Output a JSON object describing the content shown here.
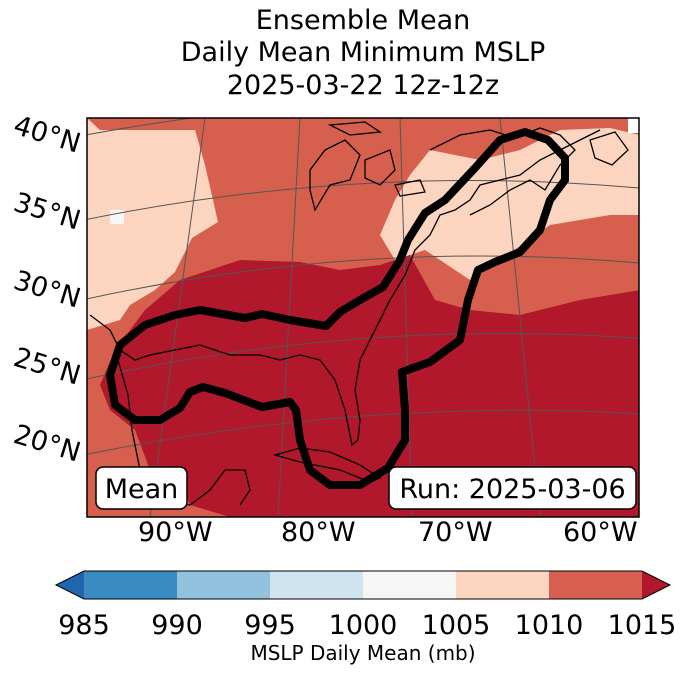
{
  "title": {
    "line1": "Ensemble Mean",
    "line2": "Daily Mean Minimum MSLP",
    "line3": "2025-03-22 12z-12z"
  },
  "map": {
    "lat_labels": [
      "40°N",
      "35°N",
      "30°N",
      "25°N",
      "20°N"
    ],
    "lon_labels": [
      "90°W",
      "80°W",
      "70°W",
      "60°W"
    ],
    "mean_box": "Mean",
    "run_box": "Run: 2025-03-06"
  },
  "colorbar": {
    "ticks": [
      "985",
      "990",
      "995",
      "1000",
      "1005",
      "1010",
      "1015"
    ],
    "colors": [
      "#3a8bc1",
      "#91c2de",
      "#d0e4ef",
      "#f6f6f6",
      "#fcd5c0",
      "#d6604d",
      "#b2182b"
    ],
    "under_color": "#2166ac",
    "over_color": "#b2182b",
    "label": "MSLP Daily Mean (mb)"
  }
}
